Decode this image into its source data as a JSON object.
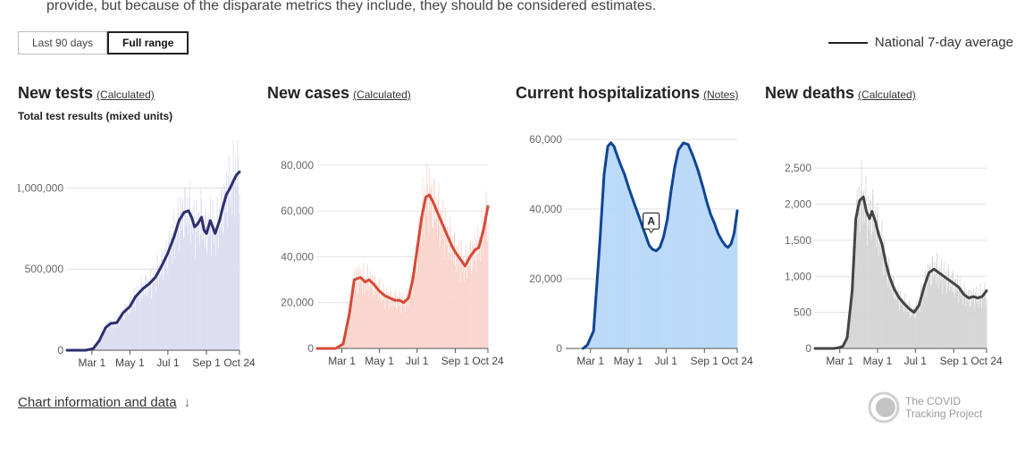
{
  "intro_text": "provide, but because of the disparate metrics they include, they should be considered estimates.",
  "range_toggle": {
    "last90_label": "Last 90 days",
    "full_label": "Full range",
    "selected": "Full range"
  },
  "legend": {
    "label": "National 7-day average",
    "color": "#222222"
  },
  "footer": {
    "chart_info_label": "Chart information and data",
    "arrow": "↓"
  },
  "brand": {
    "name_line1": "The COVID",
    "name_line2": "Tracking Project"
  },
  "chart_data": [
    {
      "id": "tests",
      "type": "bar+line",
      "title": "New tests",
      "note_label": "(Calculated)",
      "subtitle": "Total test results (mixed units)",
      "line_color": "#2e2f6e",
      "bar_color": "#dcdcf0",
      "x_ticks": [
        "Mar 1",
        "May 1",
        "Jul 1",
        "Sep 1",
        "Oct 24"
      ],
      "x_tick_days": [
        40,
        101,
        162,
        224,
        277
      ],
      "x_days": [
        0,
        30,
        42,
        52,
        62,
        70,
        80,
        90,
        101,
        110,
        122,
        132,
        142,
        152,
        162,
        172,
        180,
        188,
        195,
        200,
        205,
        210,
        216,
        220,
        224,
        230,
        238,
        245,
        250,
        256,
        262,
        268,
        272,
        277
      ],
      "values": [
        0,
        0,
        10000,
        60000,
        140000,
        165000,
        170000,
        230000,
        270000,
        330000,
        380000,
        410000,
        450000,
        520000,
        600000,
        700000,
        800000,
        850000,
        860000,
        820000,
        760000,
        780000,
        820000,
        740000,
        720000,
        800000,
        720000,
        800000,
        880000,
        960000,
        1000000,
        1050000,
        1080000,
        1100000
      ],
      "y_ticks": [
        0,
        500000,
        1000000
      ],
      "y_tick_labels": [
        "0",
        "500,000",
        "1,000,000"
      ],
      "ylim": [
        0,
        1300000
      ]
    },
    {
      "id": "cases",
      "type": "bar+line",
      "title": "New cases",
      "note_label": "(Calculated)",
      "line_color": "#d44a36",
      "bar_color": "#f9d4cc",
      "x_ticks": [
        "Mar 1",
        "May 1",
        "Jul 1",
        "Sep 1",
        "Oct 24"
      ],
      "x_tick_days": [
        40,
        101,
        162,
        224,
        277
      ],
      "x_days": [
        0,
        30,
        42,
        52,
        60,
        70,
        78,
        84,
        92,
        101,
        110,
        118,
        126,
        134,
        140,
        148,
        155,
        162,
        170,
        176,
        182,
        188,
        194,
        202,
        210,
        218,
        224,
        232,
        240,
        248,
        256,
        262,
        270,
        277
      ],
      "values": [
        0,
        0,
        2000,
        15000,
        30000,
        31000,
        29000,
        30000,
        28000,
        25000,
        23000,
        22000,
        21000,
        21000,
        20000,
        22000,
        30000,
        43000,
        58000,
        66000,
        67000,
        64000,
        60000,
        55000,
        50000,
        45000,
        42000,
        39000,
        36000,
        40000,
        43000,
        44000,
        52000,
        62000
      ],
      "y_ticks": [
        0,
        20000,
        40000,
        60000,
        80000
      ],
      "y_tick_labels": [
        "0",
        "20,000",
        "40,000",
        "60,000",
        "80,000"
      ],
      "ylim": [
        0,
        85000
      ]
    },
    {
      "id": "hospitalizations",
      "type": "area+line",
      "title": "Current hospitalizations",
      "note_label": "(Notes)",
      "line_color": "#0e4595",
      "bar_color": "#b8d8f8",
      "annotation": {
        "label": "A",
        "day": 138
      },
      "x_ticks": [
        "Mar 1",
        "May 1",
        "Jul 1",
        "Sep 1",
        "Oct 24"
      ],
      "x_tick_days": [
        40,
        101,
        162,
        224,
        277
      ],
      "x_days": [
        28,
        35,
        45,
        55,
        62,
        68,
        73,
        78,
        82,
        88,
        95,
        102,
        110,
        118,
        124,
        130,
        135,
        140,
        146,
        152,
        158,
        164,
        170,
        176,
        182,
        190,
        198,
        206,
        214,
        222,
        228,
        234,
        240,
        246,
        252,
        258,
        262,
        267,
        272,
        277
      ],
      "values": [
        0,
        1000,
        5000,
        30000,
        50000,
        58000,
        59000,
        58000,
        56000,
        53000,
        50000,
        46000,
        42000,
        38000,
        35000,
        32000,
        29500,
        28500,
        28000,
        29000,
        32000,
        37000,
        45000,
        52000,
        57000,
        59000,
        58500,
        55000,
        51000,
        46000,
        42000,
        38500,
        36000,
        33000,
        31000,
        29500,
        29000,
        30000,
        33000,
        39500
      ],
      "y_ticks": [
        0,
        20000,
        40000,
        60000
      ],
      "y_tick_labels": [
        "0",
        "20,000",
        "40,000",
        "60,000"
      ],
      "ylim": [
        0,
        60000
      ]
    },
    {
      "id": "deaths",
      "type": "bar+line",
      "title": "New deaths",
      "note_label": "(Calculated)",
      "line_color": "#444444",
      "bar_color": "#d4d4d4",
      "x_ticks": [
        "Mar 1",
        "May 1",
        "Jul 1",
        "Sep 1",
        "Oct 24"
      ],
      "x_tick_days": [
        40,
        101,
        162,
        224,
        277
      ],
      "x_days": [
        0,
        30,
        38,
        45,
        52,
        60,
        66,
        72,
        78,
        83,
        88,
        92,
        98,
        102,
        108,
        114,
        120,
        128,
        136,
        144,
        152,
        160,
        168,
        176,
        184,
        192,
        200,
        208,
        216,
        224,
        232,
        240,
        248,
        256,
        262,
        270,
        277
      ],
      "values": [
        0,
        0,
        10,
        30,
        150,
        800,
        1800,
        2050,
        2100,
        1900,
        1800,
        1900,
        1750,
        1600,
        1450,
        1200,
        1000,
        820,
        700,
        620,
        550,
        500,
        600,
        850,
        1050,
        1100,
        1050,
        1000,
        950,
        900,
        850,
        750,
        700,
        720,
        700,
        720,
        800
      ],
      "y_ticks": [
        0,
        500,
        1000,
        1500,
        2000,
        2500
      ],
      "y_tick_labels": [
        "0",
        "500",
        "1,000",
        "1,500",
        "2,000",
        "2,500"
      ],
      "ylim": [
        0,
        2700
      ]
    }
  ]
}
